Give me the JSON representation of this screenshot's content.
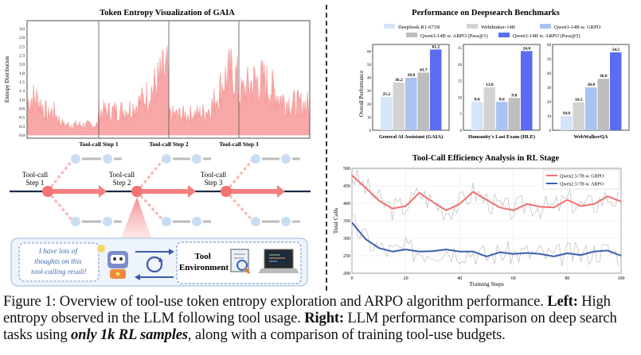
{
  "left_top": {
    "title": "Token Entropy Visualization of GAIA",
    "ylabel": "Entropy Distribution",
    "yticks": [
      "0.0",
      "0.3",
      "0.5",
      "0.8",
      "1.0",
      "1.3",
      "1.5",
      "1.8",
      "2.0",
      "2.3",
      "2.5",
      "2.8",
      "3.0"
    ],
    "step_labels": [
      "Tool-call Step 1",
      "Tool-call Step 2",
      "Tool-call Step 3"
    ]
  },
  "diagram": {
    "labels": [
      "Tool-call\nStep 1",
      "Tool-call\nStep 2",
      "Tool-call\nStep 3"
    ],
    "thought": [
      "I have lots of",
      "thoughts on this",
      "tool-calling result!"
    ],
    "env": [
      "Tool",
      "Environment"
    ]
  },
  "perf": {
    "title": "Performance on Deepsearch Benchmarks",
    "legend": [
      "DeepSeek-R1-671B",
      "Webthinker-14B",
      "Qwen3-14B w. GRPO",
      "Qwen3-14B w. ARPO (Pass@1)",
      "Qwen3-14B w. ARPO (Pass@5)"
    ],
    "ylabel": "Overall Performance",
    "colors": [
      "#d6e4f7",
      "#d3d3d3",
      "#a9c4f2",
      "#bdbdbd",
      "#5a6cf0"
    ]
  },
  "chart_data": [
    {
      "type": "bar",
      "title": "Performance on Deepsearch Benchmarks",
      "categories": [
        "General AI Assistant (GAIA)",
        "Humanity's Last Exam (HLE)",
        "WebWalkerQA"
      ],
      "series": [
        {
          "name": "DeepSeek-R1-671B",
          "values": [
            25.2,
            8.6,
            10.0
          ]
        },
        {
          "name": "Webthinker-14B",
          "values": [
            36.2,
            13.0,
            19.5
          ]
        },
        {
          "name": "Qwen3-14B w. GRPO",
          "values": [
            39.8,
            8.6,
            30.0
          ]
        },
        {
          "name": "Qwen3-14B w. ARPO (Pass@1)",
          "values": [
            43.7,
            9.8,
            36.0
          ]
        },
        {
          "name": "Qwen3-14B w. ARPO (Pass@5)",
          "values": [
            61.2,
            24.0,
            54.5
          ]
        }
      ],
      "value_labels": [
        [
          "25.2",
          "36.2",
          "39.8",
          "43.7",
          "61.2"
        ],
        [
          "8.6",
          "13.0",
          "8.6",
          "9.8",
          "24.0"
        ],
        [
          "10.0",
          "19.5",
          "30.0",
          "36.0",
          "54.5"
        ]
      ],
      "ylabel": "Overall Performance",
      "yticks": [
        [
          0,
          10,
          20,
          30,
          40,
          50,
          60
        ],
        [
          0,
          5,
          10,
          15,
          20,
          25
        ],
        [
          0,
          10,
          20,
          30,
          40,
          50,
          60
        ]
      ],
      "ylim": [
        [
          0,
          65
        ],
        [
          0,
          26
        ],
        [
          0,
          60
        ]
      ]
    },
    {
      "type": "line",
      "title": "Tool-Call Efficiency Analysis in RL Stage",
      "xlabel": "Training Steps",
      "ylabel": "Total Calls",
      "xlim": [
        0,
        100
      ],
      "ylim": [
        200,
        500
      ],
      "xticks": [
        0,
        20,
        40,
        60,
        80,
        100
      ],
      "yticks": [
        200,
        250,
        300,
        350,
        400,
        450,
        500
      ],
      "series": [
        {
          "name": "Qwen2.5-7B w. GRPO",
          "color": "#f07070",
          "x": [
            0,
            5,
            10,
            15,
            20,
            25,
            30,
            35,
            40,
            45,
            50,
            55,
            60,
            65,
            70,
            75,
            80,
            85,
            90,
            95,
            100
          ],
          "y": [
            480,
            445,
            408,
            385,
            392,
            430,
            404,
            380,
            398,
            433,
            410,
            388,
            380,
            398,
            390,
            388,
            410,
            392,
            398,
            420,
            405
          ]
        },
        {
          "name": "Qwen2.5-7B w. ARPO",
          "color": "#3c5fb0",
          "x": [
            0,
            5,
            10,
            15,
            20,
            25,
            30,
            35,
            40,
            45,
            50,
            55,
            60,
            65,
            70,
            75,
            80,
            85,
            90,
            95,
            100
          ],
          "y": [
            345,
            298,
            272,
            262,
            268,
            262,
            263,
            268,
            262,
            262,
            248,
            260,
            255,
            258,
            255,
            248,
            257,
            252,
            262,
            265,
            250
          ]
        }
      ]
    }
  ],
  "caption": {
    "p1": "Figure 1: Overview of tool-use token entropy exploration and ARPO algorithm performance. ",
    "left": "Left:",
    "p2": " High entropy observed in the LLM following tool usage. ",
    "right": "Right:",
    "p3": " LLM performance comparison on deep search tasks using ",
    "emph": "only 1k RL samples",
    "p4": ", along with a comparison of training tool-use budgets."
  }
}
